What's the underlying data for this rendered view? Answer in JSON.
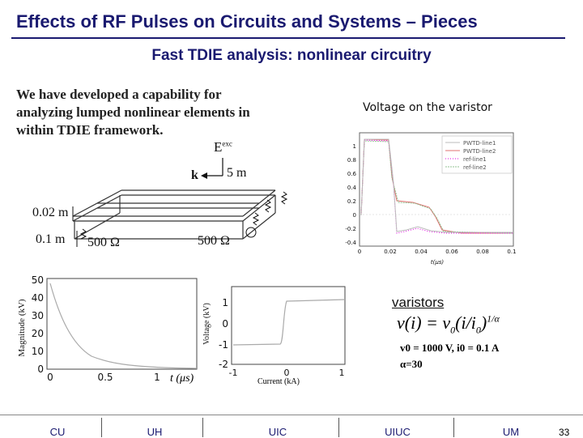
{
  "header": {
    "title": "Effects of RF Pulses on Circuits and Systems – Pieces",
    "subtitle": "Fast TDIE analysis: nonlinear circuitry"
  },
  "intro": {
    "lines": [
      "We have developed a capability for",
      "analyzing lumped nonlinear elements in",
      "within TDIE framework."
    ]
  },
  "circuit_figure": {
    "e_label": "E",
    "e_sup": "exc",
    "k_label": "k",
    "length_label": "5 m",
    "height_label": "0.02 m",
    "spacing_label": "0.1 m",
    "left_load": "500 Ω",
    "right_load": "500 Ω"
  },
  "varistor_plot": {
    "title": "Voltage on the varistor",
    "y_ticks": [
      "1",
      "0.8",
      "0.6",
      "0.4",
      "0.2",
      "0",
      "-0.2",
      "-0.4"
    ],
    "x_ticks": [
      "0",
      "0.02",
      "0.04",
      "0.06",
      "0.08",
      "0.1"
    ],
    "xlabel": "t(μs)",
    "legend": [
      "PWTD-line1",
      "PWTD-line2",
      "ref-line1",
      "ref-line2"
    ]
  },
  "pulse_plot": {
    "ylabel": "Magnitude (kV)",
    "y_ticks": [
      "50",
      "40",
      "30",
      "20",
      "10",
      "0"
    ],
    "x_ticks": [
      "0",
      "0.5",
      "1"
    ],
    "xlabel": "t (μs)"
  },
  "iv_plot": {
    "ylabel": "Voltage (kV)",
    "y_ticks": [
      "1",
      "0",
      "-1",
      "-2"
    ],
    "x_ticks": [
      "-1",
      "0",
      "1"
    ],
    "xlabel": "Current (kA)"
  },
  "varistor_model": {
    "heading": "varistors",
    "equation_lhs": "v(i) = v",
    "equation_sub": "0",
    "equation_rhs": "(i/i",
    "equation_rhs_sub": "0",
    "equation_close": ")",
    "equation_exp": "1/α",
    "params": "v0 = 1000 V, i0 = 0.1 A",
    "alpha": "α=30"
  },
  "footer": {
    "items": [
      "CU",
      "UH",
      "UIC",
      "UIUC",
      "UM"
    ],
    "page_number": "33"
  },
  "colors": {
    "title": "#1a1a70",
    "pwtd_line1": "#bbbbbb",
    "pwtd_line2": "#e07070",
    "ref_line1": "#e000e0",
    "ref_line2": "#90c090"
  }
}
